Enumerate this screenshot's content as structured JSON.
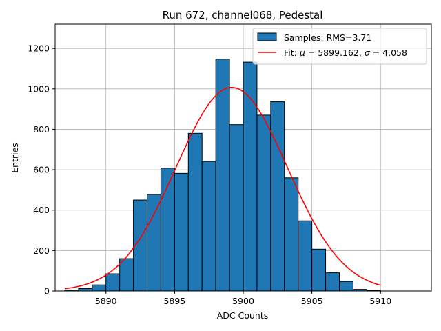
{
  "chart_data": {
    "type": "bar",
    "title": "Run 672, channel068, Pedestal",
    "xlabel": "ADC Counts",
    "ylabel": "Entries",
    "xlim": [
      5886.3,
      5913.7
    ],
    "ylim": [
      0,
      1320
    ],
    "xticks": [
      5890,
      5895,
      5900,
      5905,
      5910
    ],
    "yticks": [
      0,
      200,
      400,
      600,
      800,
      1000,
      1200
    ],
    "grid": true,
    "legend_position": "top-right",
    "histogram": {
      "name": "Samples: RMS=3.71",
      "color": "#1f77b4",
      "bin_edges": [
        5887,
        5888,
        5889,
        5890,
        5891,
        5892,
        5893,
        5894,
        5895,
        5896,
        5897,
        5898,
        5899,
        5900,
        5901,
        5902,
        5903,
        5904,
        5905,
        5906,
        5907,
        5908,
        5909,
        5910
      ],
      "counts": [
        4,
        12,
        30,
        85,
        160,
        450,
        478,
        608,
        582,
        780,
        641,
        1147,
        823,
        1132,
        870,
        936,
        560,
        347,
        207,
        90,
        47,
        8,
        2
      ]
    },
    "fit": {
      "name_prefix": "Fit: ",
      "name_mu": "μ",
      "name_mid": " = 5899.162, ",
      "name_sigma": "σ",
      "name_suffix": " = 4.058",
      "color": "#ff0000",
      "mu": 5899.162,
      "sigma": 4.058,
      "amplitude": 1007,
      "x_range": [
        5887,
        5910
      ]
    }
  }
}
